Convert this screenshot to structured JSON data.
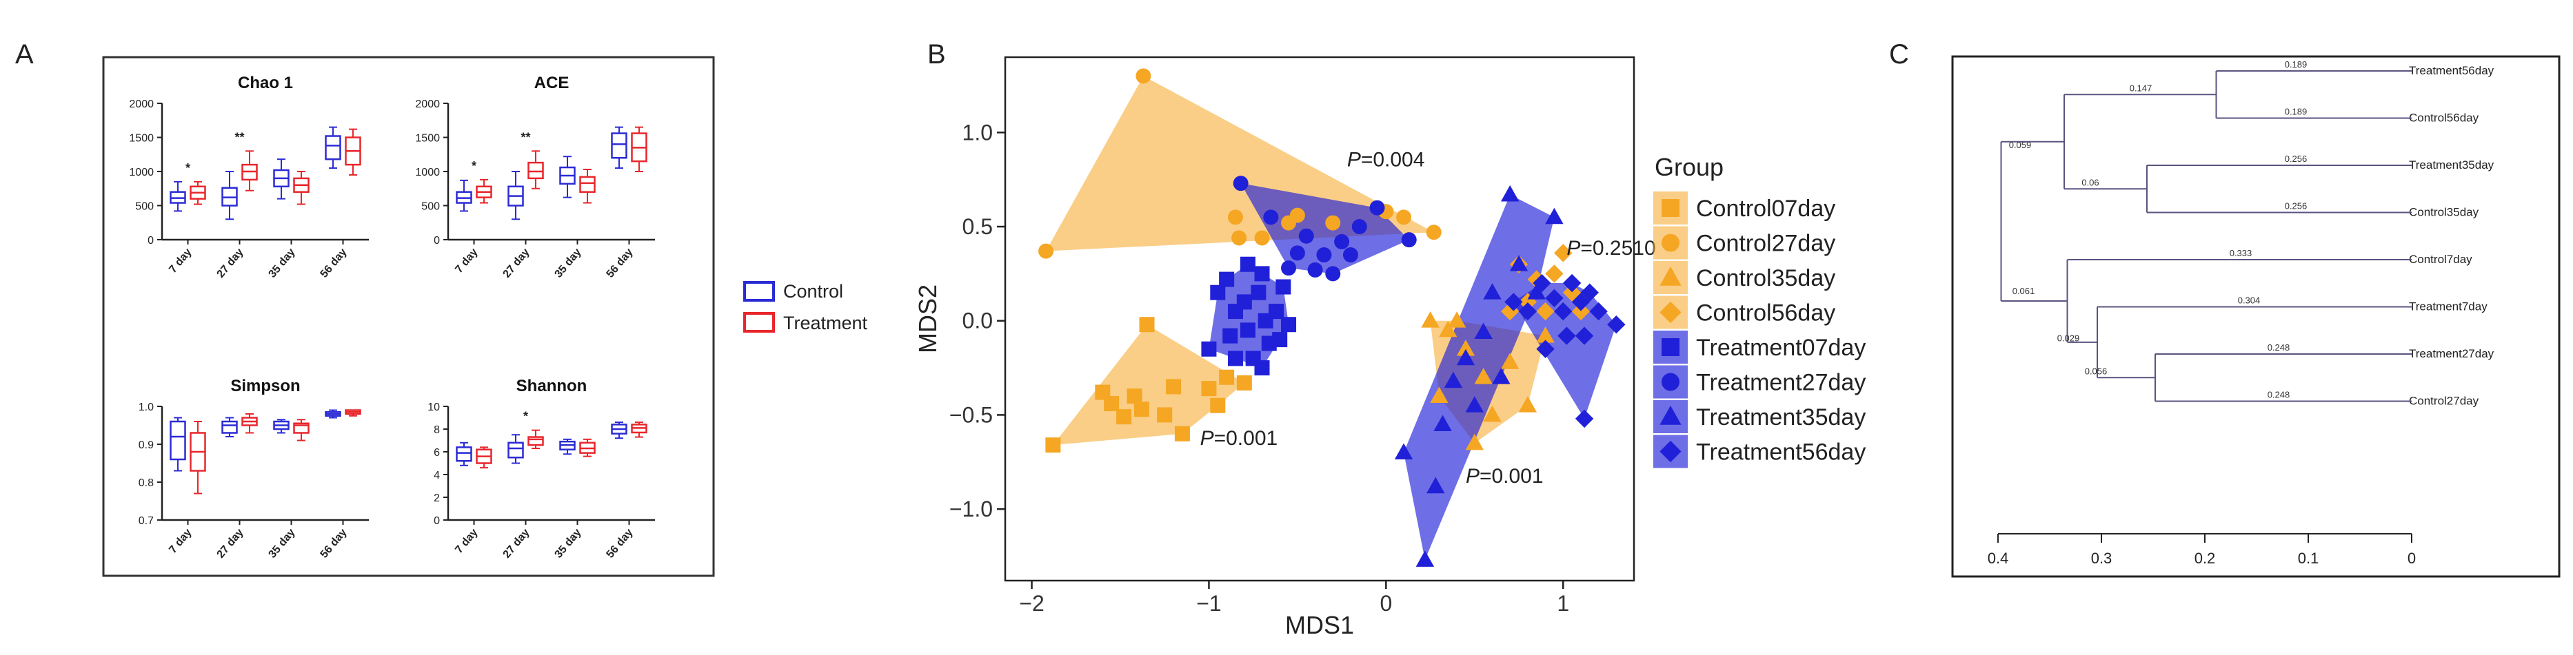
{
  "panel_letters": {
    "a": "A",
    "b": "B",
    "c": "C"
  },
  "box_legend": {
    "control": "Control",
    "treatment": "Treatment"
  },
  "colors": {
    "control_box": "#2b2bd6",
    "treatment_box": "#e8262b",
    "control_fill": "#f5a623",
    "treatment_fill": "#2020d8",
    "dendro_line": "#5a5480",
    "frame": "#222222"
  },
  "chart_data": [
    {
      "id": "chao1",
      "type": "box",
      "title": "Chao 1",
      "categories": [
        "7 day",
        "27 day",
        "35 day",
        "56 day"
      ],
      "ylim": [
        0,
        2000
      ],
      "yticks": [
        "0",
        "500",
        "1000",
        "1500",
        "2000"
      ],
      "series": [
        {
          "name": "Control",
          "boxes": [
            {
              "min": 420,
              "q1": 540,
              "median": 610,
              "q3": 700,
              "max": 850
            },
            {
              "min": 300,
              "q1": 500,
              "median": 620,
              "q3": 760,
              "max": 1000
            },
            {
              "min": 600,
              "q1": 780,
              "median": 900,
              "q3": 1020,
              "max": 1180
            },
            {
              "min": 1050,
              "q1": 1180,
              "median": 1380,
              "q3": 1520,
              "max": 1650
            }
          ]
        },
        {
          "name": "Treatment",
          "boxes": [
            {
              "min": 520,
              "q1": 600,
              "median": 690,
              "q3": 780,
              "max": 850
            },
            {
              "min": 720,
              "q1": 880,
              "median": 1000,
              "q3": 1100,
              "max": 1300
            },
            {
              "min": 520,
              "q1": 700,
              "median": 800,
              "q3": 900,
              "max": 1000
            },
            {
              "min": 950,
              "q1": 1100,
              "median": 1300,
              "q3": 1500,
              "max": 1620
            }
          ]
        }
      ],
      "annotations": [
        {
          "category": "7 day",
          "text": "*"
        },
        {
          "category": "27 day",
          "text": "**"
        }
      ]
    },
    {
      "id": "ace",
      "type": "box",
      "title": "ACE",
      "categories": [
        "7 day",
        "27 day",
        "35 day",
        "56 day"
      ],
      "ylim": [
        0,
        2000
      ],
      "yticks": [
        "0",
        "500",
        "1000",
        "1500",
        "2000"
      ],
      "series": [
        {
          "name": "Control",
          "boxes": [
            {
              "min": 420,
              "q1": 540,
              "median": 610,
              "q3": 700,
              "max": 870
            },
            {
              "min": 300,
              "q1": 500,
              "median": 640,
              "q3": 780,
              "max": 1000
            },
            {
              "min": 620,
              "q1": 820,
              "median": 940,
              "q3": 1060,
              "max": 1220
            },
            {
              "min": 1050,
              "q1": 1200,
              "median": 1400,
              "q3": 1560,
              "max": 1650
            }
          ]
        },
        {
          "name": "Treatment",
          "boxes": [
            {
              "min": 540,
              "q1": 620,
              "median": 700,
              "q3": 780,
              "max": 880
            },
            {
              "min": 750,
              "q1": 900,
              "median": 1000,
              "q3": 1130,
              "max": 1300
            },
            {
              "min": 540,
              "q1": 700,
              "median": 830,
              "q3": 920,
              "max": 1030
            },
            {
              "min": 1000,
              "q1": 1150,
              "median": 1350,
              "q3": 1560,
              "max": 1650
            }
          ]
        }
      ],
      "annotations": [
        {
          "category": "7 day",
          "text": "*"
        },
        {
          "category": "27 day",
          "text": "**"
        }
      ]
    },
    {
      "id": "simpson",
      "type": "box",
      "title": "Simpson",
      "categories": [
        "7 day",
        "27 day",
        "35 day",
        "56 day"
      ],
      "ylim": [
        0.7,
        1.0
      ],
      "yticks": [
        "0.7",
        "0.8",
        "0.9",
        "1.0"
      ],
      "series": [
        {
          "name": "Control",
          "boxes": [
            {
              "min": 0.83,
              "q1": 0.86,
              "median": 0.92,
              "q3": 0.96,
              "max": 0.97
            },
            {
              "min": 0.92,
              "q1": 0.93,
              "median": 0.95,
              "q3": 0.96,
              "max": 0.97
            },
            {
              "min": 0.93,
              "q1": 0.94,
              "median": 0.95,
              "q3": 0.96,
              "max": 0.965
            },
            {
              "min": 0.97,
              "q1": 0.975,
              "median": 0.98,
              "q3": 0.985,
              "max": 0.99
            }
          ]
        },
        {
          "name": "Treatment",
          "boxes": [
            {
              "min": 0.77,
              "q1": 0.83,
              "median": 0.88,
              "q3": 0.93,
              "max": 0.96
            },
            {
              "min": 0.93,
              "q1": 0.95,
              "median": 0.96,
              "q3": 0.97,
              "max": 0.98
            },
            {
              "min": 0.91,
              "q1": 0.93,
              "median": 0.95,
              "q3": 0.955,
              "max": 0.965
            },
            {
              "min": 0.975,
              "q1": 0.98,
              "median": 0.985,
              "q3": 0.99,
              "max": 0.99
            }
          ]
        }
      ],
      "annotations": []
    },
    {
      "id": "shannon",
      "type": "box",
      "title": "Shannon",
      "categories": [
        "7 day",
        "27 day",
        "35 day",
        "56 day"
      ],
      "ylim": [
        0,
        10
      ],
      "yticks": [
        "0",
        "2",
        "4",
        "6",
        "8",
        "10"
      ],
      "series": [
        {
          "name": "Control",
          "boxes": [
            {
              "min": 4.8,
              "q1": 5.2,
              "median": 5.9,
              "q3": 6.4,
              "max": 6.8
            },
            {
              "min": 5.0,
              "q1": 5.5,
              "median": 6.3,
              "q3": 6.8,
              "max": 7.5
            },
            {
              "min": 5.8,
              "q1": 6.2,
              "median": 6.6,
              "q3": 6.9,
              "max": 7.1
            },
            {
              "min": 7.2,
              "q1": 7.6,
              "median": 8.0,
              "q3": 8.4,
              "max": 8.6
            }
          ]
        },
        {
          "name": "Treatment",
          "boxes": [
            {
              "min": 4.6,
              "q1": 5.0,
              "median": 5.6,
              "q3": 6.2,
              "max": 6.4
            },
            {
              "min": 6.3,
              "q1": 6.6,
              "median": 7.1,
              "q3": 7.3,
              "max": 7.9
            },
            {
              "min": 5.6,
              "q1": 5.9,
              "median": 6.3,
              "q3": 6.8,
              "max": 7.1
            },
            {
              "min": 7.3,
              "q1": 7.7,
              "median": 8.1,
              "q3": 8.4,
              "max": 8.6
            }
          ]
        }
      ],
      "annotations": [
        {
          "category": "27 day",
          "text": "*"
        }
      ]
    },
    {
      "id": "nmds",
      "type": "scatter",
      "xlabel": "MDS1",
      "ylabel": "MDS2",
      "xlim": [
        -2.15,
        1.4
      ],
      "ylim": [
        -1.38,
        1.4
      ],
      "xticks": [
        -2,
        -1,
        0,
        1
      ],
      "xtick_labels": [
        "−2",
        "−1",
        "0",
        "1"
      ],
      "yticks": [
        -1,
        -0.5,
        0,
        0.5,
        1
      ],
      "ytick_labels": [
        "−1.0",
        "−0.5",
        "0.0",
        "0.5",
        "1.0"
      ],
      "legend_title": "Group",
      "annotations": [
        {
          "italic": "P",
          "text": "=0.004",
          "x": -0.22,
          "y": 0.82
        },
        {
          "italic": "P",
          "text": "=0.2510",
          "x": 1.02,
          "y": 0.35
        },
        {
          "italic": "P",
          "text": "=0.001",
          "x": -1.05,
          "y": -0.66
        },
        {
          "italic": "P",
          "text": "=0.001",
          "x": 0.45,
          "y": -0.86
        }
      ],
      "series": [
        {
          "name": "Control07day",
          "group": "Control",
          "marker": "square",
          "hull": true,
          "points": [
            [
              -1.88,
              -0.66
            ],
            [
              -1.6,
              -0.38
            ],
            [
              -1.55,
              -0.44
            ],
            [
              -1.48,
              -0.51
            ],
            [
              -1.42,
              -0.4
            ],
            [
              -1.38,
              -0.47
            ],
            [
              -1.25,
              -0.5
            ],
            [
              -1.2,
              -0.35
            ],
            [
              -1.15,
              -0.6
            ],
            [
              -1.0,
              -0.36
            ],
            [
              -0.95,
              -0.45
            ],
            [
              -0.9,
              -0.3
            ],
            [
              -0.8,
              -0.33
            ],
            [
              -1.35,
              -0.02
            ]
          ]
        },
        {
          "name": "Control27day",
          "group": "Control",
          "marker": "circle",
          "hull": true,
          "points": [
            [
              -1.92,
              0.37
            ],
            [
              -1.37,
              1.3
            ],
            [
              -0.85,
              0.55
            ],
            [
              -0.83,
              0.44
            ],
            [
              -0.55,
              0.52
            ],
            [
              -0.5,
              0.56
            ],
            [
              -0.3,
              0.52
            ],
            [
              0.1,
              0.55
            ],
            [
              0.27,
              0.47
            ],
            [
              0.0,
              0.58
            ],
            [
              -0.7,
              0.44
            ]
          ]
        },
        {
          "name": "Control35day",
          "group": "Control",
          "marker": "triangle",
          "hull": true,
          "points": [
            [
              0.25,
              0.0
            ],
            [
              0.35,
              -0.05
            ],
            [
              0.4,
              0.0
            ],
            [
              0.45,
              -0.15
            ],
            [
              0.55,
              -0.3
            ],
            [
              0.6,
              -0.5
            ],
            [
              0.7,
              -0.22
            ],
            [
              0.8,
              -0.45
            ],
            [
              0.5,
              -0.65
            ],
            [
              0.3,
              -0.4
            ],
            [
              0.9,
              -0.08
            ]
          ]
        },
        {
          "name": "Control56day",
          "group": "Control",
          "marker": "diamond",
          "hull": false,
          "points": [
            [
              0.75,
              0.3
            ],
            [
              0.85,
              0.22
            ],
            [
              0.95,
              0.25
            ],
            [
              1.05,
              0.15
            ],
            [
              1.1,
              0.05
            ],
            [
              0.9,
              0.05
            ],
            [
              1.0,
              0.36
            ],
            [
              0.8,
              0.1
            ],
            [
              0.7,
              0.05
            ]
          ]
        },
        {
          "name": "Treatment07day",
          "group": "Treatment",
          "marker": "square",
          "hull": true,
          "points": [
            [
              -1.0,
              -0.15
            ],
            [
              -0.95,
              0.15
            ],
            [
              -0.9,
              0.22
            ],
            [
              -0.85,
              0.05
            ],
            [
              -0.85,
              -0.2
            ],
            [
              -0.8,
              0.1
            ],
            [
              -0.78,
              -0.05
            ],
            [
              -0.75,
              -0.2
            ],
            [
              -0.72,
              0.15
            ],
            [
              -0.7,
              0.25
            ],
            [
              -0.68,
              0.0
            ],
            [
              -0.66,
              -0.12
            ],
            [
              -0.62,
              0.05
            ],
            [
              -0.6,
              -0.1
            ],
            [
              -0.58,
              0.18
            ],
            [
              -0.55,
              -0.02
            ],
            [
              -0.78,
              0.3
            ],
            [
              -0.88,
              -0.08
            ],
            [
              -0.7,
              -0.25
            ]
          ]
        },
        {
          "name": "Treatment27day",
          "group": "Treatment",
          "marker": "circle",
          "hull": true,
          "points": [
            [
              -0.82,
              0.73
            ],
            [
              -0.65,
              0.55
            ],
            [
              -0.5,
              0.36
            ],
            [
              -0.45,
              0.45
            ],
            [
              -0.35,
              0.35
            ],
            [
              -0.3,
              0.25
            ],
            [
              -0.25,
              0.42
            ],
            [
              -0.2,
              0.35
            ],
            [
              -0.15,
              0.5
            ],
            [
              -0.05,
              0.6
            ],
            [
              0.13,
              0.43
            ],
            [
              -0.55,
              0.28
            ],
            [
              -0.4,
              0.27
            ]
          ]
        },
        {
          "name": "Treatment35day",
          "group": "Treatment",
          "marker": "triangle",
          "hull": true,
          "points": [
            [
              0.1,
              -0.7
            ],
            [
              0.22,
              -1.27
            ],
            [
              0.28,
              -0.88
            ],
            [
              0.32,
              -0.55
            ],
            [
              0.38,
              -0.32
            ],
            [
              0.45,
              -0.2
            ],
            [
              0.5,
              -0.45
            ],
            [
              0.55,
              -0.06
            ],
            [
              0.6,
              0.15
            ],
            [
              0.7,
              0.67
            ],
            [
              0.75,
              0.3
            ],
            [
              0.85,
              0.15
            ],
            [
              0.95,
              0.55
            ],
            [
              0.65,
              -0.3
            ]
          ]
        },
        {
          "name": "Treatment56day",
          "group": "Treatment",
          "marker": "diamond",
          "hull": true,
          "points": [
            [
              0.72,
              0.1
            ],
            [
              0.8,
              0.05
            ],
            [
              0.88,
              0.2
            ],
            [
              0.95,
              0.12
            ],
            [
              1.0,
              0.05
            ],
            [
              1.05,
              0.2
            ],
            [
              1.1,
              0.1
            ],
            [
              1.12,
              -0.08
            ],
            [
              1.15,
              0.15
            ],
            [
              1.2,
              0.05
            ],
            [
              1.3,
              -0.02
            ],
            [
              1.02,
              -0.08
            ],
            [
              1.12,
              -0.52
            ],
            [
              0.9,
              -0.15
            ]
          ]
        }
      ]
    },
    {
      "id": "dendrogram",
      "type": "dendrogram",
      "xlim": [
        0.4,
        0
      ],
      "xticks": [
        0.4,
        0.3,
        0.2,
        0.1,
        0
      ],
      "xtick_labels": [
        "0.4",
        "0.3",
        "0.2",
        "0.1",
        "0"
      ],
      "leaves": [
        "Treatment56day",
        "Control56day",
        "Treatment35day",
        "Control35day",
        "Control7day",
        "Treatment7day",
        "Treatment27day",
        "Control27day"
      ],
      "branch_labels": [
        "0.189",
        "0.189",
        "0.147",
        "0.256",
        "0.256",
        "0.06",
        "0.059",
        "0.333",
        "0.304",
        "0.248",
        "0.248",
        "0.056",
        "0.029",
        "0.061"
      ],
      "merges": [
        {
          "a": 0,
          "b": 1,
          "height": 0.189
        },
        {
          "a": 2,
          "b": 3,
          "height": 0.256
        },
        {
          "a": 6,
          "b": 7,
          "height": 0.248
        },
        {
          "a": "m0",
          "b": "m1",
          "height": 0.336
        },
        {
          "a": 5,
          "b": "m2",
          "height": 0.304
        },
        {
          "a": 4,
          "b": "m4",
          "height": 0.333
        },
        {
          "a": "m3",
          "b": "m5",
          "height": 0.397
        }
      ]
    }
  ]
}
